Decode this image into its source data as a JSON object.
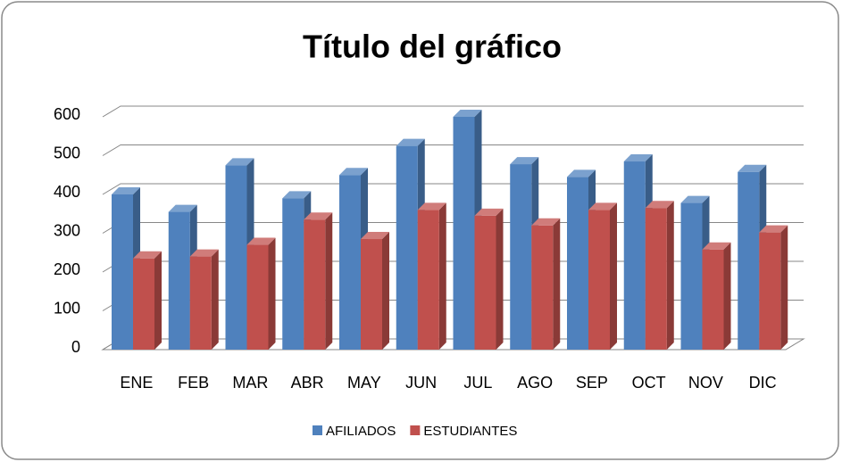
{
  "chart_data": {
    "type": "bar3d",
    "title": "Título del gráfico",
    "categories": [
      "ENE",
      "FEB",
      "MAR",
      "ABR",
      "MAY",
      "JUN",
      "JUL",
      "AGO",
      "SEP",
      "OCT",
      "NOV",
      "DIC"
    ],
    "series": [
      {
        "name": "AFILIADOS",
        "color": "#4f81bd",
        "values": [
          400,
          355,
          475,
          390,
          450,
          525,
          600,
          478,
          445,
          485,
          378,
          458
        ]
      },
      {
        "name": "ESTUDIANTES",
        "color": "#c0504d",
        "values": [
          235,
          240,
          270,
          335,
          285,
          360,
          345,
          320,
          360,
          365,
          258,
          302
        ]
      }
    ],
    "ylim": [
      0,
      600
    ],
    "yticks": [
      0,
      100,
      200,
      300,
      400,
      500,
      600
    ],
    "grid": true,
    "legend": "bottom"
  }
}
